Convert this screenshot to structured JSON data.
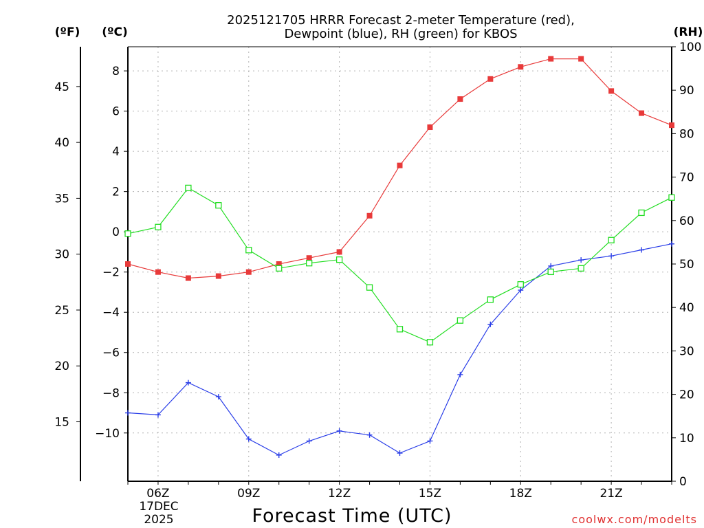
{
  "chart_data": {
    "type": "line",
    "title_lines": [
      "2025121705 HRRR Forecast 2-meter Temperature (red),",
      "Dewpoint (blue), RH (green) for KBOS"
    ],
    "xlabel": "Forecast Time (UTC)",
    "credit": "coolwx.com/modelts",
    "date_label": [
      "17DEC",
      "2025"
    ],
    "x_tick_labels": [
      {
        "hour": 6,
        "label": "06Z"
      },
      {
        "hour": 9,
        "label": "09Z"
      },
      {
        "hour": 12,
        "label": "12Z"
      },
      {
        "hour": 15,
        "label": "15Z"
      },
      {
        "hour": 18,
        "label": "18Z"
      },
      {
        "hour": 21,
        "label": "21Z"
      }
    ],
    "x_range": [
      5,
      23
    ],
    "celsius_axis": {
      "unit_label": "(ºC)",
      "range": [
        -12.4,
        9.2
      ],
      "ticks": [
        -10,
        -8,
        -6,
        -4,
        -2,
        0,
        2,
        4,
        6,
        8
      ]
    },
    "fahrenheit_axis": {
      "unit_label": "(ºF)",
      "ticks": [
        15,
        20,
        25,
        30,
        35,
        40,
        45
      ]
    },
    "rh_axis": {
      "unit_label": "(RH)",
      "range": [
        0,
        100
      ],
      "ticks": [
        0,
        10,
        20,
        30,
        40,
        50,
        60,
        70,
        80,
        90,
        100
      ]
    },
    "grid": true,
    "hours": [
      5,
      6,
      7,
      8,
      9,
      10,
      11,
      12,
      13,
      14,
      15,
      16,
      17,
      18,
      19,
      20,
      21,
      22,
      23
    ],
    "series": [
      {
        "name": "2-meter Temperature",
        "color": "#e83a3a",
        "marker": "filled-square",
        "axis": "celsius",
        "values": [
          -1.6,
          -2.0,
          -2.3,
          -2.2,
          -2.0,
          -1.6,
          -1.3,
          -1.0,
          0.8,
          3.3,
          5.2,
          6.6,
          7.6,
          8.2,
          8.6,
          8.6,
          7.0,
          5.9,
          5.3
        ]
      },
      {
        "name": "Dewpoint",
        "color": "#2a3ee8",
        "marker": "plus",
        "axis": "celsius",
        "values": [
          -9.0,
          -9.1,
          -7.5,
          -8.2,
          -10.3,
          -11.1,
          -10.4,
          -9.9,
          -10.1,
          -11.0,
          -10.4,
          -7.1,
          -4.6,
          -2.9,
          -1.7,
          -1.4,
          -1.2,
          -0.9,
          -0.6
        ]
      },
      {
        "name": "RH",
        "color": "#22dd22",
        "marker": "open-square",
        "axis": "rh",
        "values": [
          57,
          58.5,
          67.5,
          63.5,
          53.2,
          49,
          50.2,
          51,
          44.6,
          35,
          32,
          37,
          41.8,
          45.3,
          48.2,
          49,
          55.5,
          61.8,
          65.3
        ]
      }
    ]
  }
}
